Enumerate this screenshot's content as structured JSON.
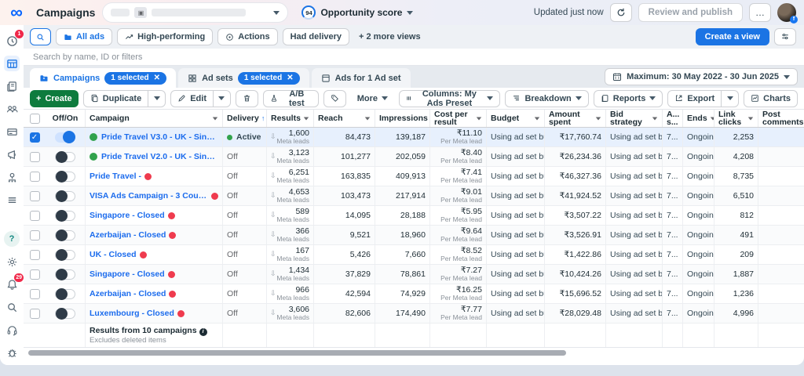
{
  "header": {
    "title": "Campaigns",
    "opportunity_value": "94",
    "opportunity_label": "Opportunity score",
    "updated": "Updated just now",
    "review_publish": "Review and publish",
    "more": "…"
  },
  "views_bar": {
    "views": [
      "All ads",
      "High-performing",
      "Actions",
      "Had delivery"
    ],
    "more_views": "+ 2 more views",
    "create_view": "Create a view"
  },
  "search": {
    "placeholder": "Search by name, ID or filters"
  },
  "tabs": [
    {
      "label": "Campaigns",
      "badge": "1 selected"
    },
    {
      "label": "Ad sets",
      "badge": "1 selected"
    },
    {
      "label": "Ads for 1 Ad set"
    }
  ],
  "date_range": "Maximum: 30 May 2022 - 30 Jun 2025",
  "toolbar": {
    "create": "Create",
    "duplicate": "Duplicate",
    "edit": "Edit",
    "ab_test": "A/B test",
    "more": "More",
    "columns": "Columns: My Ads Preset",
    "breakdown": "Breakdown",
    "reports": "Reports",
    "export": "Export",
    "charts": "Charts"
  },
  "table": {
    "columns": [
      {
        "key": "check",
        "label": ""
      },
      {
        "key": "toggle",
        "label": "Off/On"
      },
      {
        "key": "campaign",
        "label": "Campaign",
        "sort": true
      },
      {
        "key": "delivery",
        "label": "Delivery",
        "sort": true,
        "sorted_up": true
      },
      {
        "key": "results",
        "label": "Results",
        "sort": true
      },
      {
        "key": "reach",
        "label": "Reach",
        "sort": true
      },
      {
        "key": "impressions",
        "label": "Impressions",
        "sort": true
      },
      {
        "key": "cpr",
        "label": "Cost per result",
        "sort": true
      },
      {
        "key": "budget",
        "label": "Budget",
        "sort": true
      },
      {
        "key": "spent",
        "label": "Amount spent",
        "sort": true
      },
      {
        "key": "bid",
        "label": "Bid strategy",
        "sort": true
      },
      {
        "key": "attr",
        "label": "A...\ns...",
        "sort": true
      },
      {
        "key": "ends",
        "label": "Ends",
        "sort": true
      },
      {
        "key": "clicks",
        "label": "Link\nclicks",
        "sort": true
      },
      {
        "key": "post",
        "label": "Post\ncomments"
      }
    ],
    "rows": [
      {
        "selected": true,
        "on": true,
        "green_icon": true,
        "red_dot": false,
        "name": "Pride Travel V3.0 - UK - Singapore - Dubai...",
        "delivery": "Active",
        "results": "1,600",
        "results_sub": "Meta leads",
        "reach": "84,473",
        "impressions": "139,187",
        "cpr": "₹11.10",
        "cpr_sub": "Per Meta lead",
        "budget": "Using ad set bu...",
        "spent": "₹17,760.74",
        "bid": "Using ad set bid...",
        "attr": "7...",
        "ends": "Ongoing",
        "clicks": "2,253",
        "post": ""
      },
      {
        "selected": false,
        "on": false,
        "green_icon": true,
        "red_dot": false,
        "name": "Pride Travel V2.0 - UK - Singapore - Dubai...",
        "delivery": "Off",
        "results": "3,123",
        "results_sub": "Meta leads",
        "reach": "101,277",
        "impressions": "202,059",
        "cpr": "₹8.40",
        "cpr_sub": "Per Meta lead",
        "budget": "Using ad set bu...",
        "spent": "₹26,234.36",
        "bid": "Using ad set bid...",
        "attr": "7...",
        "ends": "Ongoing",
        "clicks": "4,208",
        "post": ""
      },
      {
        "selected": false,
        "on": false,
        "green_icon": false,
        "red_dot": true,
        "name": "Pride Travel -",
        "delivery": "Off",
        "results": "6,251",
        "results_sub": "Meta leads",
        "reach": "163,835",
        "impressions": "409,913",
        "cpr": "₹7.41",
        "cpr_sub": "Per Meta lead",
        "budget": "Using ad set bu...",
        "spent": "₹46,327.36",
        "bid": "Using ad set bid...",
        "attr": "7...",
        "ends": "Ongoing",
        "clicks": "8,735",
        "post": ""
      },
      {
        "selected": false,
        "on": false,
        "green_icon": false,
        "red_dot": true,
        "name": "VISA Ads Campaign - 3 Countries - OPEN",
        "delivery": "Off",
        "results": "4,653",
        "results_sub": "Meta leads",
        "reach": "103,473",
        "impressions": "217,914",
        "cpr": "₹9.01",
        "cpr_sub": "Per Meta lead",
        "budget": "Using ad set bu...",
        "spent": "₹41,924.52",
        "bid": "Using ad set bid...",
        "attr": "7...",
        "ends": "Ongoing",
        "clicks": "6,510",
        "post": ""
      },
      {
        "selected": false,
        "on": false,
        "green_icon": false,
        "red_dot": true,
        "name": "Singapore - Closed",
        "delivery": "Off",
        "results": "589",
        "results_sub": "Meta leads",
        "reach": "14,095",
        "impressions": "28,188",
        "cpr": "₹5.95",
        "cpr_sub": "Per Meta lead",
        "budget": "Using ad set bu...",
        "spent": "₹3,507.22",
        "bid": "Using ad set bid...",
        "attr": "7...",
        "ends": "Ongoing",
        "clicks": "812",
        "post": ""
      },
      {
        "selected": false,
        "on": false,
        "green_icon": false,
        "red_dot": true,
        "name": "Azerbaijan - Closed",
        "delivery": "Off",
        "results": "366",
        "results_sub": "Meta leads",
        "reach": "9,521",
        "impressions": "18,960",
        "cpr": "₹9.64",
        "cpr_sub": "Per Meta lead",
        "budget": "Using ad set bu...",
        "spent": "₹3,526.91",
        "bid": "Using ad set bid...",
        "attr": "7...",
        "ends": "Ongoing",
        "clicks": "491",
        "post": ""
      },
      {
        "selected": false,
        "on": false,
        "green_icon": false,
        "red_dot": true,
        "name": "UK - Closed",
        "delivery": "Off",
        "results": "167",
        "results_sub": "Meta leads",
        "reach": "5,426",
        "impressions": "7,660",
        "cpr": "₹8.52",
        "cpr_sub": "Per Meta lead",
        "budget": "Using ad set bu...",
        "spent": "₹1,422.86",
        "bid": "Using ad set bid...",
        "attr": "7...",
        "ends": "Ongoing",
        "clicks": "209",
        "post": ""
      },
      {
        "selected": false,
        "on": false,
        "green_icon": false,
        "red_dot": true,
        "name": "Singapore - Closed",
        "delivery": "Off",
        "results": "1,434",
        "results_sub": "Meta leads",
        "reach": "37,829",
        "impressions": "78,861",
        "cpr": "₹7.27",
        "cpr_sub": "Per Meta lead",
        "budget": "Using ad set bu...",
        "spent": "₹10,424.26",
        "bid": "Using ad set bid...",
        "attr": "7...",
        "ends": "Ongoing",
        "clicks": "1,887",
        "post": ""
      },
      {
        "selected": false,
        "on": false,
        "green_icon": false,
        "red_dot": true,
        "name": "Azerbaijan - Closed",
        "delivery": "Off",
        "results": "966",
        "results_sub": "Meta leads",
        "reach": "42,594",
        "impressions": "74,929",
        "cpr": "₹16.25",
        "cpr_sub": "Per Meta lead",
        "budget": "Using ad set bu...",
        "spent": "₹15,696.52",
        "bid": "Using ad set bid...",
        "attr": "7...",
        "ends": "Ongoing",
        "clicks": "1,236",
        "post": ""
      },
      {
        "selected": false,
        "on": false,
        "green_icon": false,
        "red_dot": true,
        "name": "Luxembourg - Closed",
        "delivery": "Off",
        "results": "3,606",
        "results_sub": "Meta leads",
        "reach": "82,606",
        "impressions": "174,490",
        "cpr": "₹7.77",
        "cpr_sub": "Per Meta lead",
        "budget": "Using ad set bu...",
        "spent": "₹28,029.48",
        "bid": "Using ad set bid...",
        "attr": "7...",
        "ends": "Ongoing",
        "clicks": "4,996",
        "post": ""
      }
    ],
    "footer": {
      "title": "Results from 10 campaigns",
      "subtitle": "Excludes deleted items"
    }
  },
  "sidebar_badges": {
    "recent": "1",
    "notifications": "29"
  }
}
